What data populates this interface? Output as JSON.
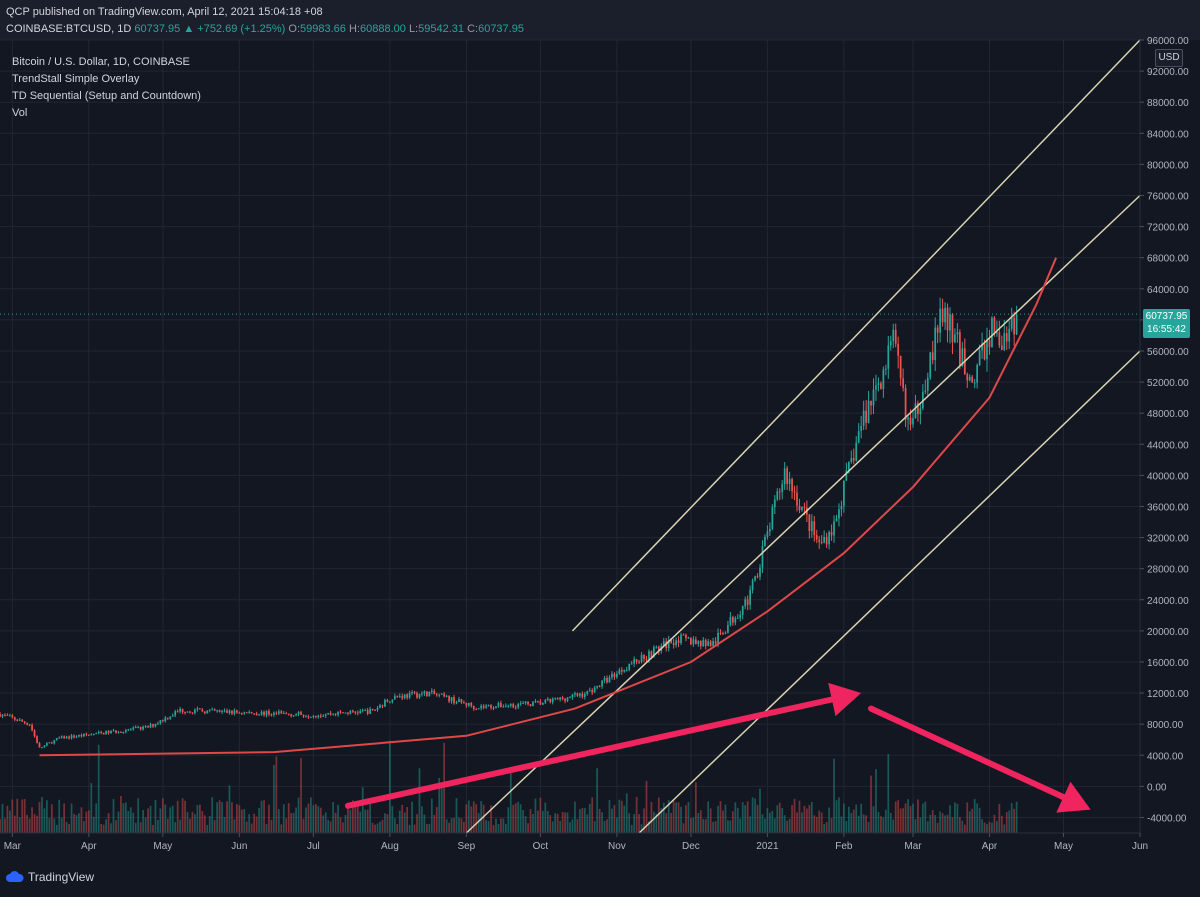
{
  "header": {
    "published": "QCP published on TradingView.com, April 12, 2021 15:04:18 +08",
    "symbol": "COINBASE:BTCUSD, 1D",
    "last": "60737.95",
    "change": "▲ +752.69 (+1.25%)",
    "o_label": "O:",
    "o": "59983.66",
    "h_label": "H:",
    "h": "60888.00",
    "l_label": "L:",
    "l": "59542.31",
    "c_label": "C:",
    "c": "60737.95"
  },
  "legend": {
    "title": "Bitcoin / U.S. Dollar, 1D, COINBASE",
    "ind1": "TrendStall Simple Overlay",
    "ind2": "TD Sequential (Setup and Countdown)",
    "ind3": "Vol"
  },
  "currency": "USD",
  "price_tag": {
    "price": "60737.95",
    "countdown": "16:55:42"
  },
  "brand": "TradingView",
  "colors": {
    "background": "#131722",
    "up": "#26a69a",
    "down": "#ef5350",
    "channel": "#d8d3b0",
    "curve": "#e04848",
    "arrow": "#f0245e"
  },
  "chart_data": {
    "type": "candlestick",
    "title": "Bitcoin / U.S. Dollar, 1D, COINBASE",
    "y_unit": "USD",
    "ylim": [
      -6000,
      96000
    ],
    "y_ticks": [
      "96000.00",
      "92000.00",
      "88000.00",
      "84000.00",
      "80000.00",
      "76000.00",
      "72000.00",
      "68000.00",
      "64000.00",
      "60000.00",
      "56000.00",
      "52000.00",
      "48000.00",
      "44000.00",
      "40000.00",
      "36000.00",
      "32000.00",
      "28000.00",
      "24000.00",
      "20000.00",
      "16000.00",
      "12000.00",
      "8000.00",
      "4000.00",
      "0.00",
      "-4000.00"
    ],
    "x_ticks": [
      "Mar",
      "Apr",
      "May",
      "Jun",
      "Jul",
      "Aug",
      "Sep",
      "Oct",
      "Nov",
      "Dec",
      "2021",
      "Feb",
      "Mar",
      "Apr",
      "May",
      "Jun"
    ],
    "xlim": [
      "2020-02-25",
      "2021-06-01"
    ],
    "price_anchors": [
      {
        "date": "2020-02-25",
        "close": 9300
      },
      {
        "date": "2020-03-08",
        "close": 8000
      },
      {
        "date": "2020-03-12",
        "close": 4900
      },
      {
        "date": "2020-03-20",
        "close": 6200
      },
      {
        "date": "2020-04-05",
        "close": 6800
      },
      {
        "date": "2020-04-25",
        "close": 7600
      },
      {
        "date": "2020-05-08",
        "close": 9800
      },
      {
        "date": "2020-06-01",
        "close": 9500
      },
      {
        "date": "2020-07-01",
        "close": 9200
      },
      {
        "date": "2020-07-25",
        "close": 9700
      },
      {
        "date": "2020-08-02",
        "close": 11500
      },
      {
        "date": "2020-08-17",
        "close": 12000
      },
      {
        "date": "2020-09-05",
        "close": 10200
      },
      {
        "date": "2020-10-01",
        "close": 10700
      },
      {
        "date": "2020-10-20",
        "close": 12000
      },
      {
        "date": "2020-11-05",
        "close": 15500
      },
      {
        "date": "2020-11-25",
        "close": 19000
      },
      {
        "date": "2020-12-10",
        "close": 18300
      },
      {
        "date": "2020-12-25",
        "close": 24500
      },
      {
        "date": "2021-01-08",
        "close": 40500
      },
      {
        "date": "2021-01-22",
        "close": 31000
      },
      {
        "date": "2021-01-28",
        "close": 33500
      },
      {
        "date": "2021-02-08",
        "close": 46500
      },
      {
        "date": "2021-02-21",
        "close": 57000
      },
      {
        "date": "2021-02-28",
        "close": 45500
      },
      {
        "date": "2021-03-13",
        "close": 61000
      },
      {
        "date": "2021-03-25",
        "close": 52000
      },
      {
        "date": "2021-04-02",
        "close": 59000
      },
      {
        "date": "2021-04-08",
        "close": 56500
      },
      {
        "date": "2021-04-12",
        "close": 60737.95
      }
    ],
    "current_price": 60737.95,
    "overlays": {
      "upper_channel": [
        [
          "2020-10-14",
          20000
        ],
        [
          "2021-06-01",
          96000
        ]
      ],
      "middle_channel": [
        [
          "2020-09-01",
          -6000
        ],
        [
          "2021-06-01",
          76000
        ]
      ],
      "lower_channel": [
        [
          "2020-11-10",
          -6000
        ],
        [
          "2021-06-01",
          56000
        ]
      ],
      "parabola": [
        [
          "2020-03-12",
          4000
        ],
        [
          "2020-06-15",
          4400
        ],
        [
          "2020-09-01",
          6500
        ],
        [
          "2020-10-15",
          10000
        ],
        [
          "2020-12-01",
          16000
        ],
        [
          "2021-01-01",
          22500
        ],
        [
          "2021-02-01",
          30000
        ],
        [
          "2021-03-01",
          38500
        ],
        [
          "2021-04-01",
          50000
        ],
        [
          "2021-04-20",
          62000
        ],
        [
          "2021-04-28",
          68000
        ]
      ],
      "arrow_up": [
        [
          "2020-07-15",
          -2500
        ],
        [
          "2021-02-08",
          12000
        ]
      ],
      "arrow_down": [
        [
          "2021-02-12",
          10000
        ],
        [
          "2021-05-12",
          -3000
        ]
      ]
    }
  }
}
